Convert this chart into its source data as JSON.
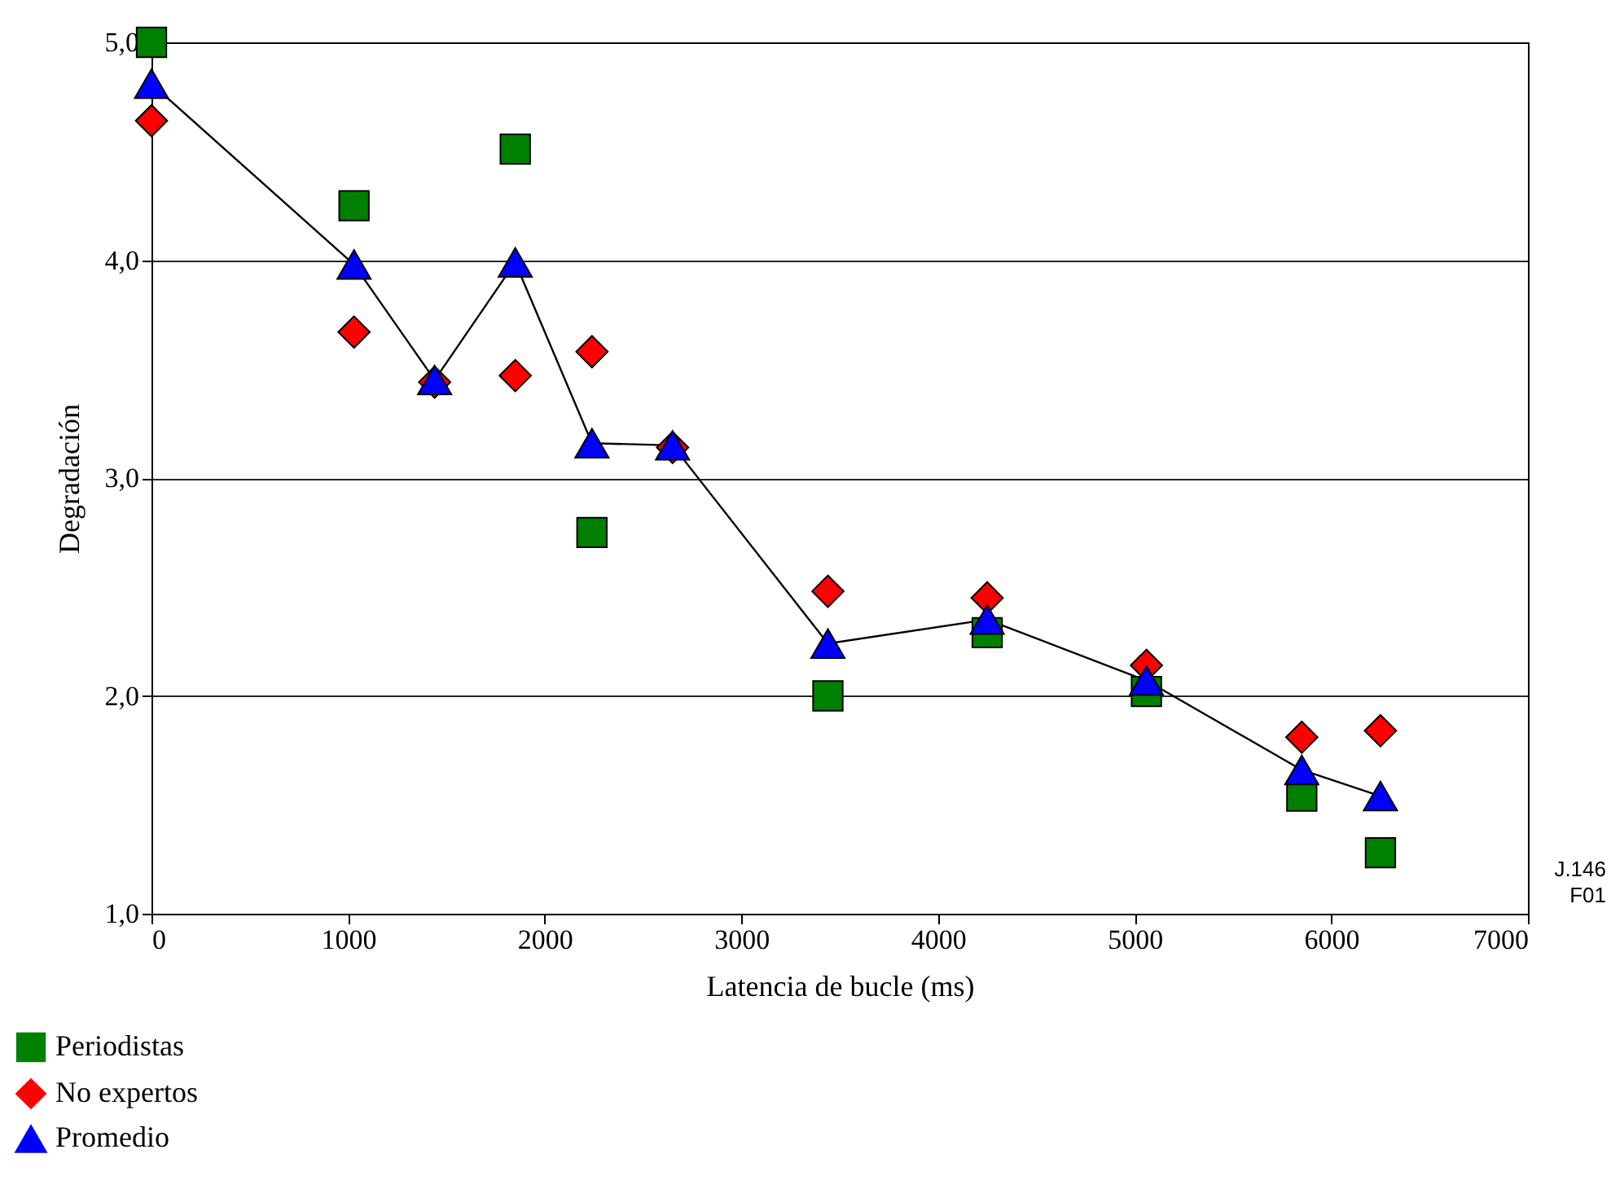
{
  "chart_data": {
    "type": "scatter",
    "xlabel": "Latencia de bucle (ms)",
    "ylabel": "Degradación",
    "x": [
      0,
      1030,
      1440,
      1850,
      2240,
      2650,
      3440,
      4250,
      5060,
      5850,
      6250
    ],
    "series": [
      {
        "name": "Periodistas",
        "type": "scatter",
        "marker": "square",
        "color": "#008000",
        "values": [
          5.0,
          4.25,
          null,
          4.51,
          2.75,
          null,
          2.0,
          2.29,
          2.02,
          1.54,
          1.28
        ]
      },
      {
        "name": "No expertos",
        "type": "scatter",
        "marker": "diamond",
        "color": "#ff0000",
        "values": [
          4.64,
          3.67,
          3.44,
          3.47,
          3.58,
          3.14,
          2.48,
          2.45,
          2.14,
          1.81,
          1.84
        ]
      },
      {
        "name": "Promedio",
        "type": "line",
        "marker": "triangle",
        "color": "#0000ff",
        "values": [
          4.81,
          3.98,
          3.45,
          3.99,
          3.16,
          3.15,
          2.24,
          2.35,
          2.07,
          1.66,
          1.54
        ]
      }
    ],
    "xlim": [
      0,
      7000
    ],
    "xticks": [
      0,
      1000,
      2000,
      3000,
      4000,
      5000,
      6000,
      7000
    ],
    "ylim": [
      1,
      5
    ],
    "yticks": [
      {
        "value": 1,
        "label": "1,0"
      },
      {
        "value": 2,
        "label": "2,0"
      },
      {
        "value": 3,
        "label": "3,0"
      },
      {
        "value": 4,
        "label": "4,0"
      },
      {
        "value": 5,
        "label": "5,0"
      }
    ],
    "grid": "y",
    "legend": "bottom left",
    "annotations": [
      "J.146",
      "F01"
    ]
  }
}
